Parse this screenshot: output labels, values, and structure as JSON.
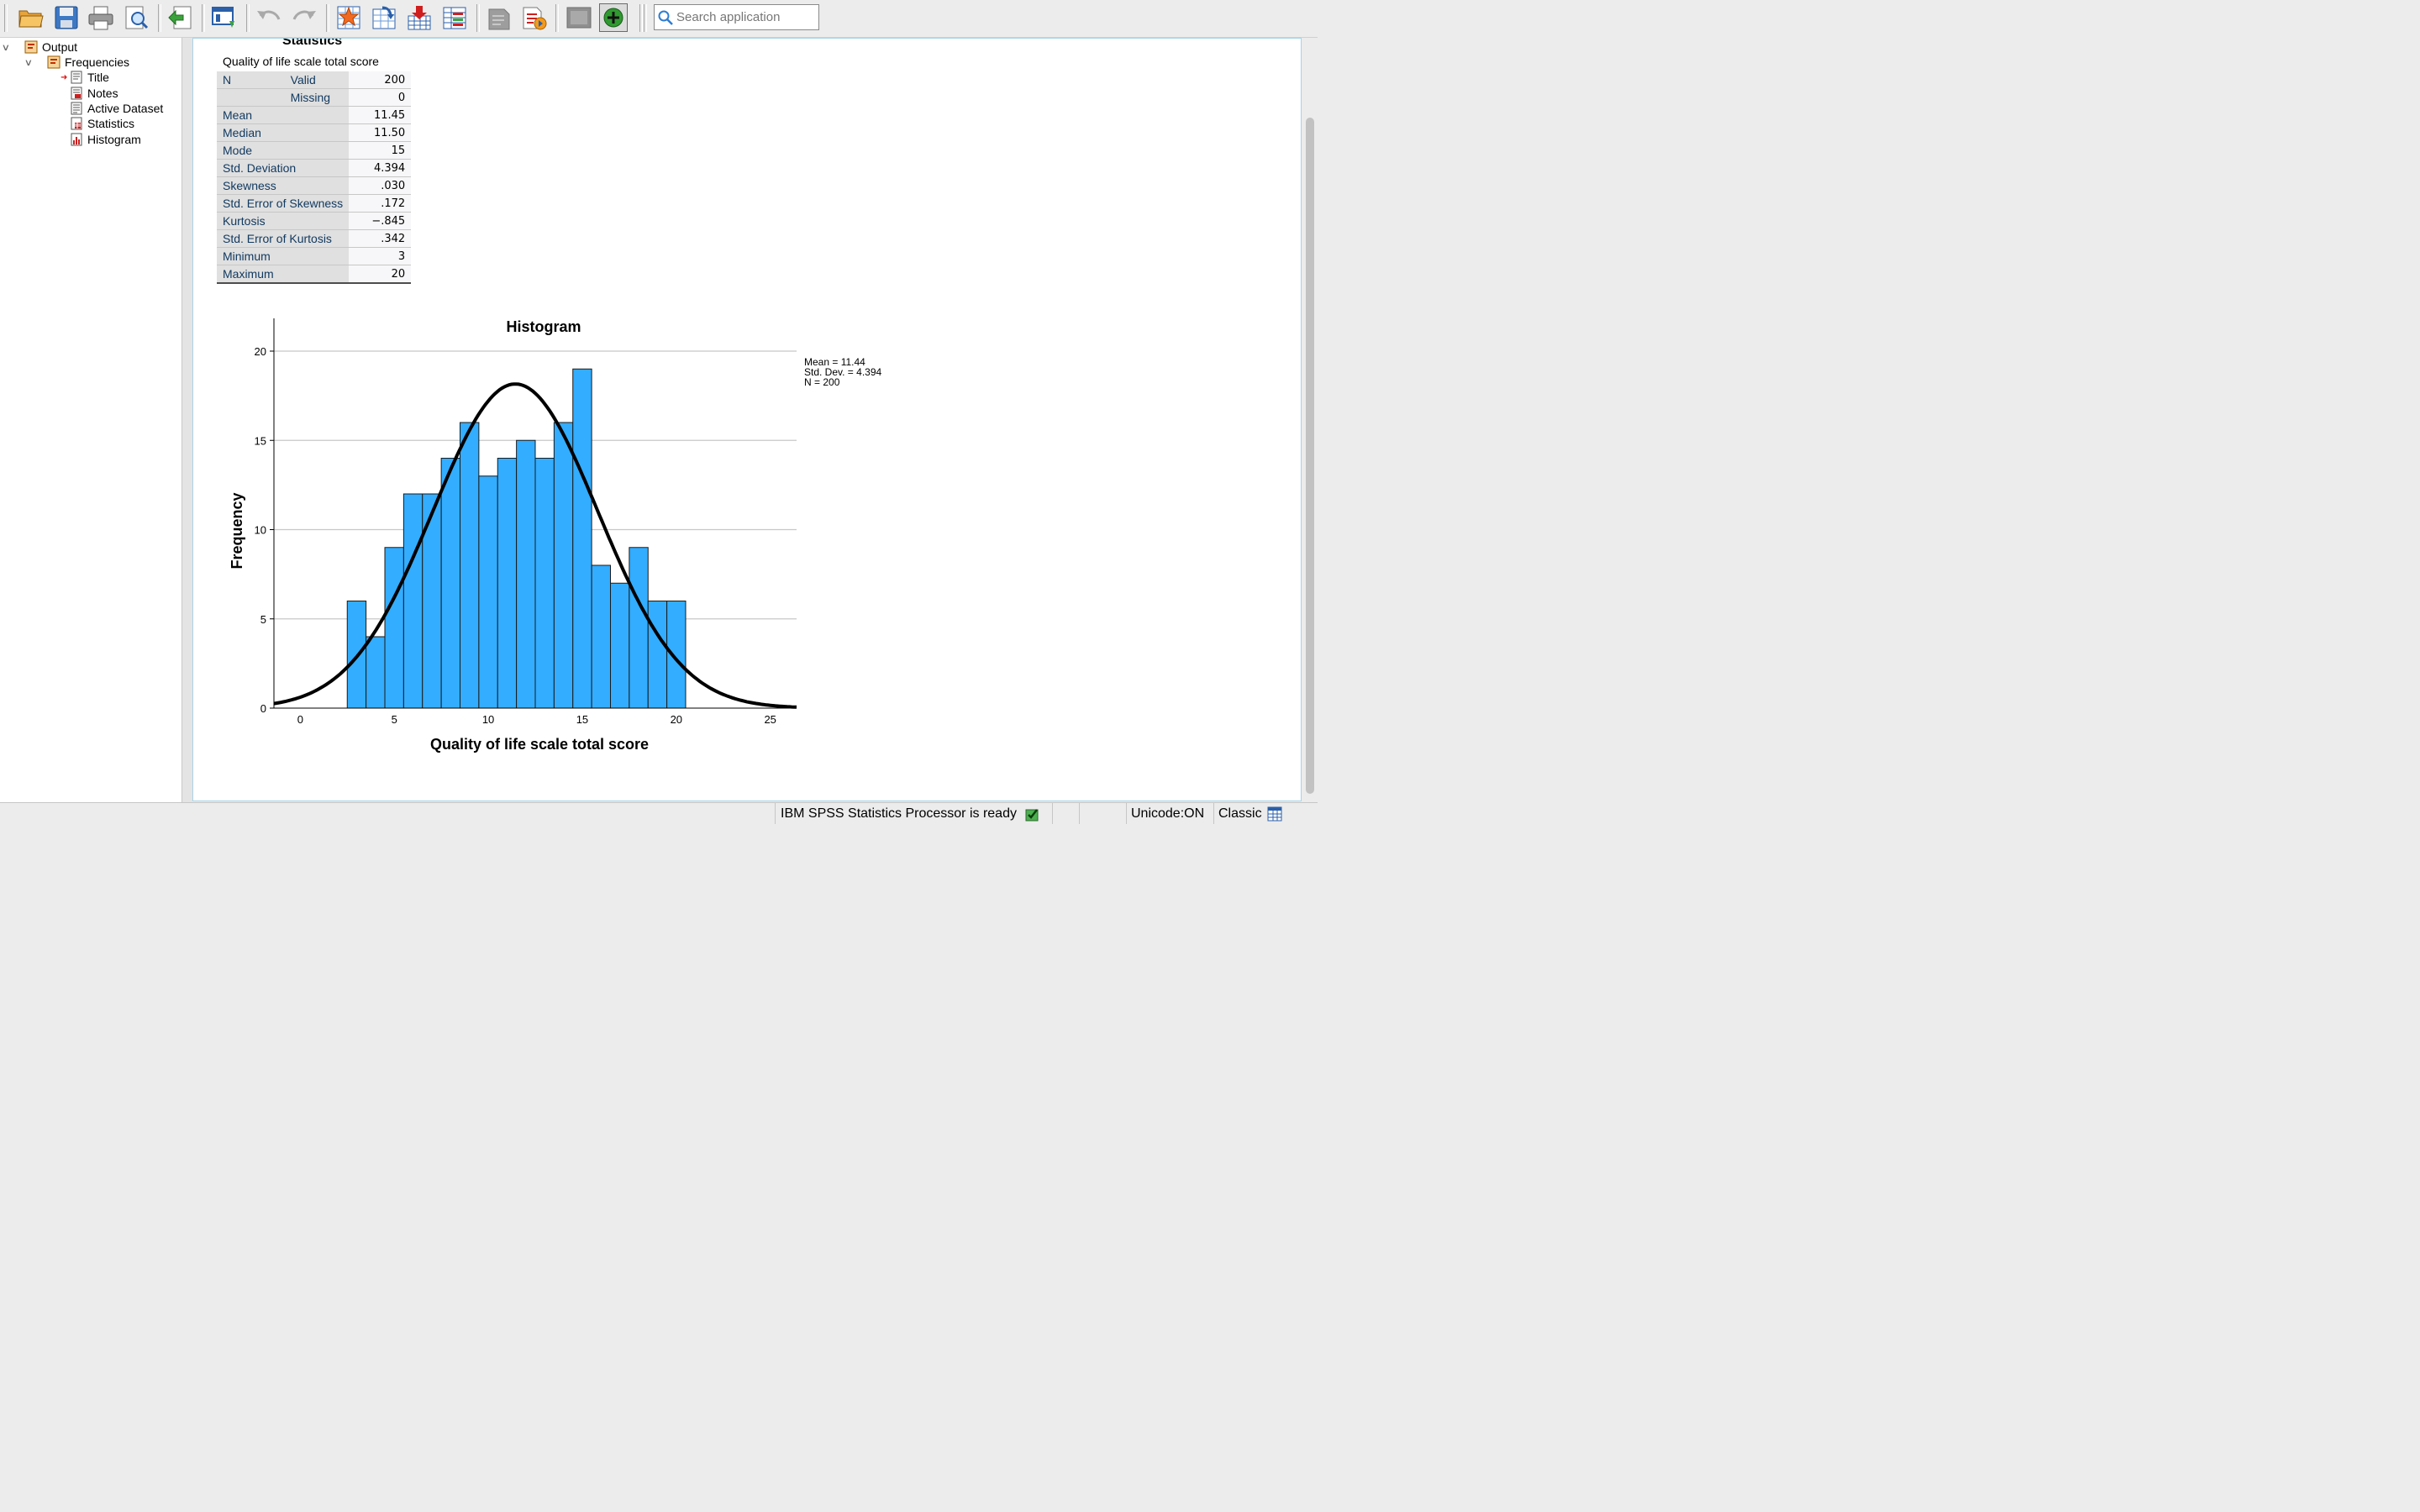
{
  "toolbar": {
    "buttons": [
      {
        "icon": "open-folder-icon"
      },
      {
        "icon": "save-icon"
      },
      {
        "icon": "print-icon"
      },
      {
        "icon": "print-preview-icon"
      },
      {
        "icon": "export-icon"
      },
      {
        "icon": "recall-dialog-icon"
      },
      {
        "icon": "undo-icon"
      },
      {
        "icon": "redo-icon"
      },
      {
        "icon": "goto-data-icon"
      },
      {
        "icon": "goto-case-icon"
      },
      {
        "icon": "insert-variable-icon"
      },
      {
        "icon": "select-variables-icon"
      },
      {
        "icon": "create-title-icon"
      },
      {
        "icon": "designate-window-icon"
      },
      {
        "icon": "hide-icon"
      },
      {
        "icon": "add-extension-icon"
      }
    ],
    "search_placeholder": "Search application"
  },
  "outline": {
    "items": [
      {
        "label": "Output",
        "level": 0,
        "icon": "output-icon"
      },
      {
        "label": "Frequencies",
        "level": 1,
        "icon": "frequencies-icon"
      },
      {
        "label": "Title",
        "level": 2,
        "icon": "title-icon",
        "current": true
      },
      {
        "label": "Notes",
        "level": 2,
        "icon": "notes-icon"
      },
      {
        "label": "Active Dataset",
        "level": 2,
        "icon": "dataset-icon"
      },
      {
        "label": "Statistics",
        "level": 2,
        "icon": "statistics-icon"
      },
      {
        "label": "Histogram",
        "level": 2,
        "icon": "histogram-icon"
      }
    ]
  },
  "statistics": {
    "heading": "Statistics",
    "caption": "Quality of life scale total score",
    "n_label": "N",
    "rows": [
      {
        "label": "Valid",
        "value": "200"
      },
      {
        "label": "Missing",
        "value": "0"
      },
      {
        "label": "Mean",
        "value": "11.45"
      },
      {
        "label": "Median",
        "value": "11.50"
      },
      {
        "label": "Mode",
        "value": "15"
      },
      {
        "label": "Std. Deviation",
        "value": "4.394"
      },
      {
        "label": "Skewness",
        "value": ".030"
      },
      {
        "label": "Std. Error of Skewness",
        "value": ".172"
      },
      {
        "label": "Kurtosis",
        "value": "−.845"
      },
      {
        "label": "Std. Error of Kurtosis",
        "value": ".342"
      },
      {
        "label": "Minimum",
        "value": "3"
      },
      {
        "label": "Maximum",
        "value": "20"
      }
    ]
  },
  "chart_data": {
    "type": "bar",
    "title": "Histogram",
    "xlabel": "Quality of life scale total score",
    "ylabel": "Frequency",
    "x_ticks": [
      0,
      5,
      10,
      15,
      20,
      25
    ],
    "y_ticks": [
      0,
      5,
      10,
      15,
      20
    ],
    "xlim": [
      -1.4,
      26.4
    ],
    "ylim": [
      0,
      20.8
    ],
    "bin_width": 1,
    "bins": [
      {
        "x": 3,
        "count": 6
      },
      {
        "x": 4,
        "count": 4
      },
      {
        "x": 5,
        "count": 9
      },
      {
        "x": 6,
        "count": 12
      },
      {
        "x": 7,
        "count": 12
      },
      {
        "x": 8,
        "count": 14
      },
      {
        "x": 9,
        "count": 16
      },
      {
        "x": 10,
        "count": 13
      },
      {
        "x": 11,
        "count": 14
      },
      {
        "x": 12,
        "count": 15
      },
      {
        "x": 13,
        "count": 14
      },
      {
        "x": 14,
        "count": 16
      },
      {
        "x": 15,
        "count": 19
      },
      {
        "x": 16,
        "count": 8
      },
      {
        "x": 17,
        "count": 7
      },
      {
        "x": 18,
        "count": 9
      },
      {
        "x": 19,
        "count": 6
      },
      {
        "x": 20,
        "count": 6
      }
    ],
    "normal_curve": {
      "mean": 11.44,
      "sd": 4.394,
      "n": 200
    },
    "legend": [
      "Mean = 11.44",
      "Std. Dev. = 4.394",
      "N = 200"
    ],
    "legend_placement": "top-right",
    "grid": "horizontal",
    "bar_color": "#33adff",
    "curve_color": "#000000"
  },
  "statusbar": {
    "processor": "IBM SPSS Statistics Processor is ready",
    "unicode": "Unicode:ON",
    "mode": "Classic"
  }
}
